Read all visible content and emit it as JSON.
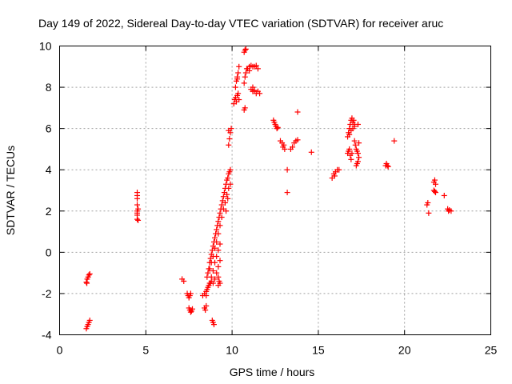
{
  "colors": {
    "series": "#ff0000",
    "grid": "#a0a0a0",
    "axis": "#000000",
    "background": "#ffffff"
  },
  "chart_data": {
    "type": "scatter",
    "title": "Day 149 of 2022, Sidereal Day-to-day VTEC variation (SDTVAR) for receiver aruc",
    "xlabel": "GPS time / hours",
    "ylabel": "SDTVAR / TECUs",
    "xlim": [
      0,
      25
    ],
    "ylim": [
      -4,
      10
    ],
    "xticks": [
      0,
      5,
      10,
      15,
      20,
      25
    ],
    "yticks": [
      -4,
      -2,
      0,
      2,
      4,
      6,
      8,
      10
    ],
    "grid": true,
    "marker": "+",
    "series": [
      {
        "name": "SDTVAR",
        "points": [
          [
            1.55,
            -1.45
          ],
          [
            1.6,
            -1.3
          ],
          [
            1.65,
            -1.2
          ],
          [
            1.7,
            -1.1
          ],
          [
            1.75,
            -1.05
          ],
          [
            1.58,
            -1.5
          ],
          [
            1.55,
            -3.7
          ],
          [
            1.6,
            -3.6
          ],
          [
            1.65,
            -3.5
          ],
          [
            1.7,
            -3.4
          ],
          [
            1.75,
            -3.3
          ],
          [
            4.5,
            2.9
          ],
          [
            4.5,
            2.75
          ],
          [
            4.5,
            2.6
          ],
          [
            4.5,
            2.3
          ],
          [
            4.5,
            2.0
          ],
          [
            4.5,
            1.9
          ],
          [
            4.5,
            1.8
          ],
          [
            4.5,
            1.6
          ],
          [
            4.55,
            2.1
          ],
          [
            4.55,
            1.55
          ],
          [
            7.1,
            -1.3
          ],
          [
            7.2,
            -1.4
          ],
          [
            7.4,
            -2.0
          ],
          [
            7.45,
            -2.1
          ],
          [
            7.5,
            -2.2
          ],
          [
            7.55,
            -2.1
          ],
          [
            7.6,
            -2.0
          ],
          [
            7.5,
            -2.7
          ],
          [
            7.55,
            -2.8
          ],
          [
            7.6,
            -2.9
          ],
          [
            7.65,
            -2.85
          ],
          [
            7.7,
            -2.75
          ],
          [
            8.3,
            -2.1
          ],
          [
            8.4,
            -2.0
          ],
          [
            8.5,
            -2.1
          ],
          [
            8.4,
            -2.7
          ],
          [
            8.5,
            -2.6
          ],
          [
            8.45,
            -2.8
          ],
          [
            8.5,
            -1.9
          ],
          [
            8.55,
            -1.8
          ],
          [
            8.6,
            -1.7
          ],
          [
            8.65,
            -1.6
          ],
          [
            8.7,
            -1.5
          ],
          [
            8.75,
            -1.5
          ],
          [
            8.8,
            -1.4
          ],
          [
            8.55,
            -1.2
          ],
          [
            8.6,
            -1.0
          ],
          [
            8.65,
            -0.8
          ],
          [
            8.7,
            -0.5
          ],
          [
            8.75,
            -0.3
          ],
          [
            8.8,
            -0.1
          ],
          [
            8.85,
            0.1
          ],
          [
            8.9,
            0.3
          ],
          [
            8.95,
            0.5
          ],
          [
            9.0,
            0.7
          ],
          [
            9.05,
            0.9
          ],
          [
            9.1,
            1.1
          ],
          [
            9.15,
            1.3
          ],
          [
            9.2,
            1.5
          ],
          [
            9.25,
            1.7
          ],
          [
            9.3,
            1.9
          ],
          [
            9.35,
            2.1
          ],
          [
            9.4,
            2.3
          ],
          [
            9.45,
            2.5
          ],
          [
            9.5,
            2.7
          ],
          [
            9.55,
            2.9
          ],
          [
            9.6,
            3.1
          ],
          [
            9.65,
            3.3
          ],
          [
            9.7,
            3.5
          ],
          [
            9.75,
            3.6
          ],
          [
            9.8,
            3.8
          ],
          [
            9.85,
            3.9
          ],
          [
            9.9,
            4.0
          ],
          [
            8.7,
            -0.8
          ],
          [
            8.8,
            -0.5
          ],
          [
            8.9,
            -0.2
          ],
          [
            9.0,
            0.2
          ],
          [
            9.1,
            0.5
          ],
          [
            9.2,
            0.9
          ],
          [
            9.3,
            1.3
          ],
          [
            9.4,
            1.7
          ],
          [
            9.5,
            2.1
          ],
          [
            8.8,
            -1.2
          ],
          [
            8.9,
            -0.9
          ],
          [
            9.0,
            -0.5
          ],
          [
            9.1,
            -0.2
          ],
          [
            9.2,
            0.1
          ],
          [
            9.3,
            0.4
          ],
          [
            8.9,
            -1.5
          ],
          [
            9.0,
            -1.3
          ],
          [
            9.1,
            -1.0
          ],
          [
            9.2,
            -0.7
          ],
          [
            9.3,
            -0.4
          ],
          [
            9.2,
            -1.2
          ],
          [
            9.25,
            -1.4
          ],
          [
            9.3,
            -1.5
          ],
          [
            9.2,
            -1.6
          ],
          [
            9.6,
            2.4
          ],
          [
            9.7,
            2.8
          ],
          [
            9.8,
            3.1
          ],
          [
            9.9,
            3.3
          ],
          [
            9.65,
            2.0
          ],
          [
            9.75,
            2.6
          ],
          [
            8.85,
            -3.3
          ],
          [
            8.9,
            -3.4
          ],
          [
            8.95,
            -3.5
          ],
          [
            9.8,
            5.2
          ],
          [
            9.85,
            5.5
          ],
          [
            9.9,
            5.8
          ],
          [
            9.95,
            6.0
          ],
          [
            9.8,
            5.9
          ],
          [
            10.1,
            7.2
          ],
          [
            10.15,
            7.4
          ],
          [
            10.2,
            7.5
          ],
          [
            10.25,
            7.3
          ],
          [
            10.3,
            7.6
          ],
          [
            10.35,
            7.7
          ],
          [
            10.4,
            7.4
          ],
          [
            10.2,
            8.0
          ],
          [
            10.25,
            8.3
          ],
          [
            10.3,
            8.5
          ],
          [
            10.35,
            8.7
          ],
          [
            10.4,
            9.0
          ],
          [
            10.3,
            8.4
          ],
          [
            10.7,
            9.7
          ],
          [
            10.75,
            9.8
          ],
          [
            10.8,
            9.85
          ],
          [
            10.7,
            8.2
          ],
          [
            10.75,
            8.5
          ],
          [
            10.8,
            8.7
          ],
          [
            10.85,
            8.9
          ],
          [
            10.7,
            6.9
          ],
          [
            10.75,
            7.0
          ],
          [
            10.9,
            8.9
          ],
          [
            11.0,
            9.0
          ],
          [
            11.1,
            9.05
          ],
          [
            11.2,
            9.0
          ],
          [
            11.3,
            9.0
          ],
          [
            11.4,
            9.05
          ],
          [
            11.5,
            8.9
          ],
          [
            11.0,
            8.8
          ],
          [
            11.1,
            7.9
          ],
          [
            11.2,
            7.8
          ],
          [
            11.3,
            7.85
          ],
          [
            11.4,
            7.7
          ],
          [
            11.5,
            7.8
          ],
          [
            11.6,
            7.7
          ],
          [
            11.2,
            8.0
          ],
          [
            12.4,
            6.4
          ],
          [
            12.45,
            6.3
          ],
          [
            12.5,
            6.2
          ],
          [
            12.55,
            6.1
          ],
          [
            12.6,
            6.0
          ],
          [
            12.65,
            6.05
          ],
          [
            12.8,
            5.4
          ],
          [
            12.9,
            5.3
          ],
          [
            13.0,
            5.2
          ],
          [
            13.05,
            5.0
          ],
          [
            12.95,
            5.1
          ],
          [
            13.2,
            4.0
          ],
          [
            13.2,
            2.9
          ],
          [
            13.4,
            5.0
          ],
          [
            13.5,
            5.1
          ],
          [
            13.6,
            5.3
          ],
          [
            13.7,
            5.4
          ],
          [
            13.8,
            5.45
          ],
          [
            13.8,
            6.8
          ],
          [
            14.6,
            4.85
          ],
          [
            15.8,
            3.6
          ],
          [
            15.9,
            3.8
          ],
          [
            16.0,
            3.9
          ],
          [
            16.1,
            4.0
          ],
          [
            16.2,
            4.0
          ],
          [
            15.95,
            3.7
          ],
          [
            16.7,
            4.8
          ],
          [
            16.75,
            4.9
          ],
          [
            16.8,
            5.0
          ],
          [
            16.85,
            4.7
          ],
          [
            16.9,
            4.5
          ],
          [
            16.95,
            4.8
          ],
          [
            16.7,
            5.6
          ],
          [
            16.75,
            5.8
          ],
          [
            16.8,
            6.0
          ],
          [
            16.85,
            6.2
          ],
          [
            16.9,
            6.4
          ],
          [
            16.95,
            6.5
          ],
          [
            17.0,
            6.3
          ],
          [
            17.05,
            6.4
          ],
          [
            17.1,
            6.2
          ],
          [
            16.8,
            5.7
          ],
          [
            16.9,
            5.9
          ],
          [
            17.0,
            6.0
          ],
          [
            17.1,
            6.1
          ],
          [
            17.1,
            5.4
          ],
          [
            17.15,
            5.2
          ],
          [
            17.2,
            5.0
          ],
          [
            17.25,
            4.9
          ],
          [
            17.3,
            4.8
          ],
          [
            17.35,
            5.3
          ],
          [
            17.2,
            4.2
          ],
          [
            17.25,
            4.3
          ],
          [
            17.3,
            4.4
          ],
          [
            17.35,
            4.6
          ],
          [
            17.3,
            6.2
          ],
          [
            18.9,
            4.2
          ],
          [
            18.95,
            4.3
          ],
          [
            19.0,
            4.2
          ],
          [
            19.05,
            4.15
          ],
          [
            19.4,
            5.4
          ],
          [
            21.3,
            2.3
          ],
          [
            21.35,
            2.4
          ],
          [
            21.4,
            1.9
          ],
          [
            21.7,
            3.4
          ],
          [
            21.75,
            3.5
          ],
          [
            21.8,
            3.3
          ],
          [
            21.7,
            3.0
          ],
          [
            21.8,
            2.9
          ],
          [
            21.75,
            2.95
          ],
          [
            22.3,
            2.75
          ],
          [
            22.5,
            2.1
          ],
          [
            22.55,
            2.0
          ],
          [
            22.6,
            2.05
          ],
          [
            22.7,
            2.0
          ]
        ]
      }
    ]
  }
}
